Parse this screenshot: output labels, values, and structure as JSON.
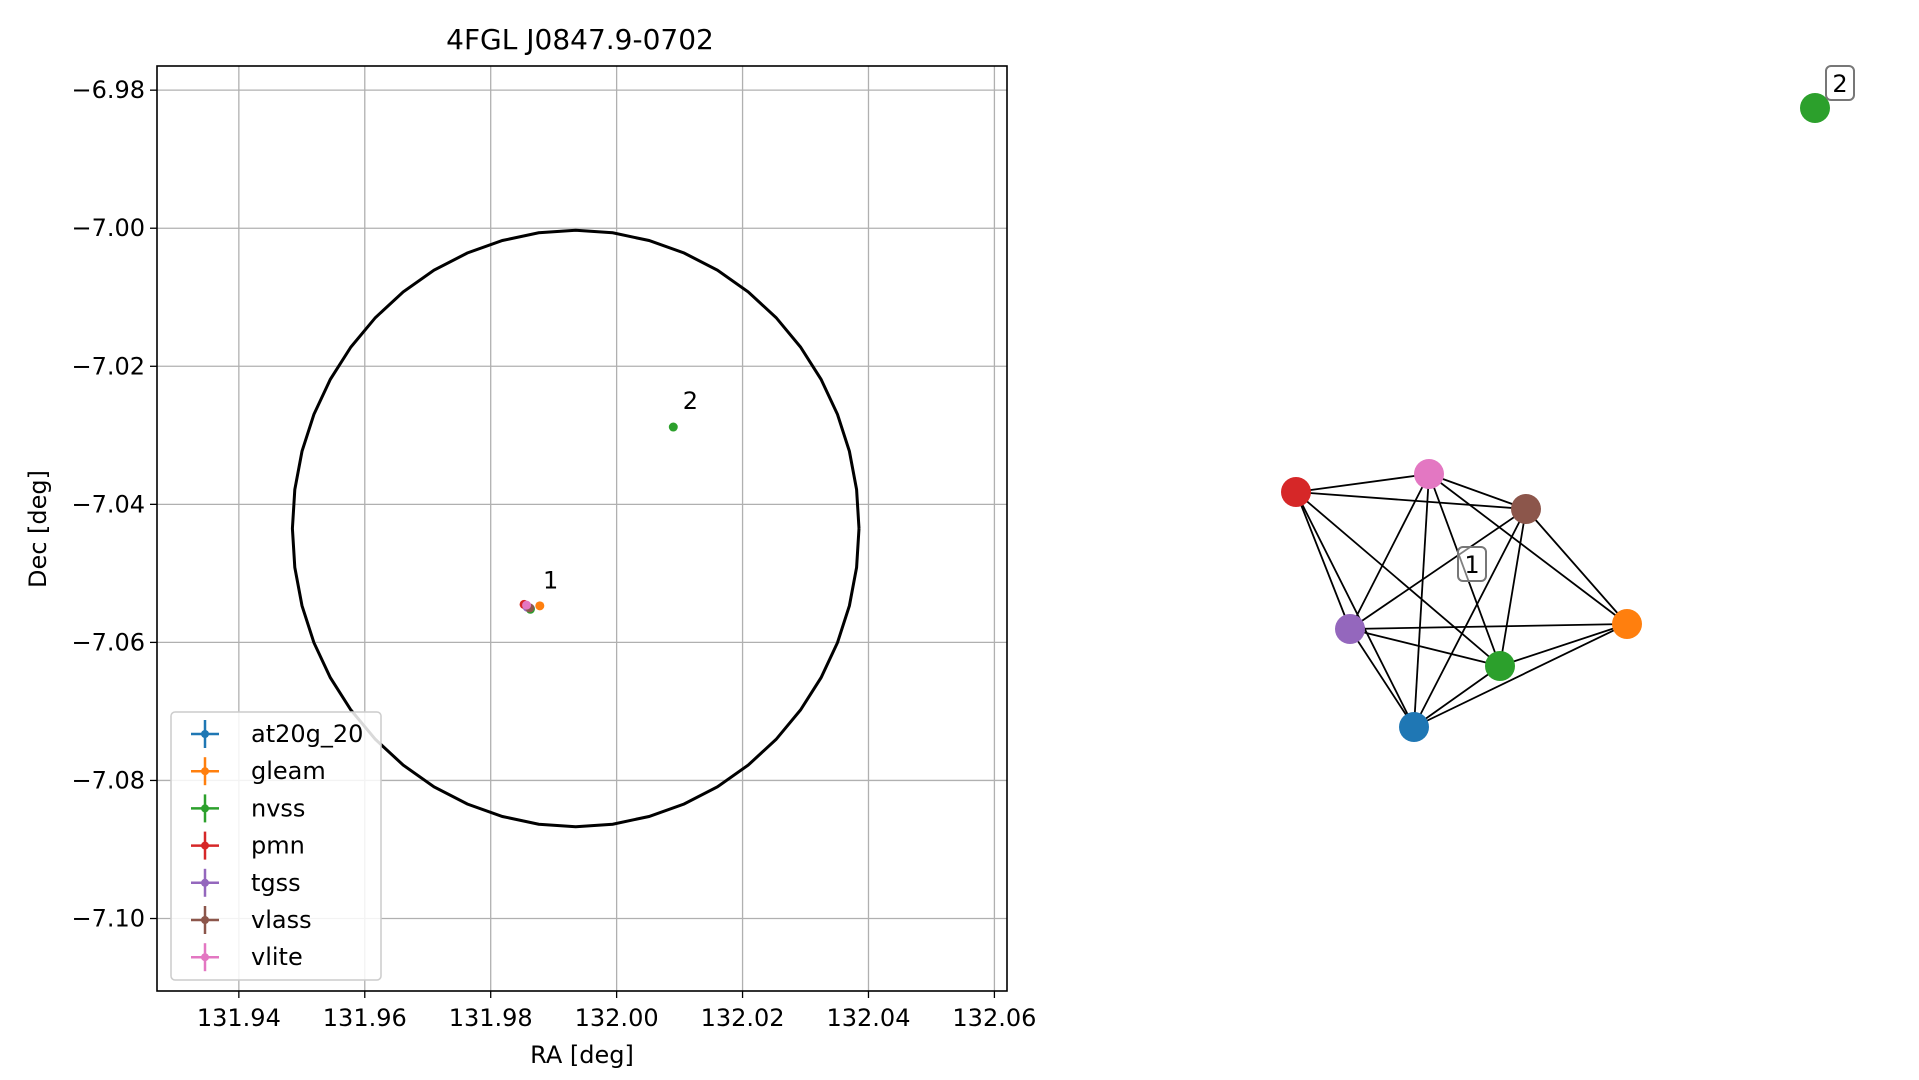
{
  "chart_data": [
    {
      "type": "scatter",
      "title": "4FGL J0847.9-0702",
      "xlabel": "RA [deg]",
      "ylabel": "Dec [deg]",
      "xlim": [
        131.927,
        132.062
      ],
      "ylim": [
        -7.1105,
        -6.9765
      ],
      "grid": true,
      "xticks": [
        131.94,
        131.96,
        131.98,
        132.0,
        132.02,
        132.04,
        132.06
      ],
      "xtick_labels": [
        "131.94",
        "131.96",
        "131.98",
        "132.00",
        "132.02",
        "132.04",
        "132.06"
      ],
      "yticks": [
        -6.98,
        -7.0,
        -7.02,
        -7.04,
        -7.06,
        -7.08,
        -7.1
      ],
      "ytick_labels": [
        "−6.98",
        "−7.00",
        "−7.02",
        "−7.04",
        "−7.06",
        "−7.08",
        "−7.10"
      ],
      "legend_position": "lower-left",
      "circle": {
        "center_ra": 131.9935,
        "center_dec": -7.0435,
        "radius_ra": 0.045,
        "radius_dec": 0.0432,
        "color": "#000000"
      },
      "series": [
        {
          "name": "at20g_20",
          "color": "#1f77b4",
          "points": [
            [
              131.9863,
              -7.0551
            ]
          ]
        },
        {
          "name": "gleam",
          "color": "#ff7f0e",
          "points": [
            [
              131.9878,
              -7.0547
            ]
          ]
        },
        {
          "name": "nvss",
          "color": "#2ca02c",
          "points": [
            [
              131.9863,
              -7.0552
            ],
            [
              132.009,
              -7.0288
            ]
          ]
        },
        {
          "name": "pmn",
          "color": "#d62728",
          "points": [
            [
              131.9853,
              -7.0545
            ]
          ]
        },
        {
          "name": "tgss",
          "color": "#9467bd",
          "points": [
            [
              131.9858,
              -7.0549
            ]
          ]
        },
        {
          "name": "vlass",
          "color": "#8c564b",
          "points": [
            [
              131.9862,
              -7.055
            ]
          ]
        },
        {
          "name": "vlite",
          "color": "#e377c2",
          "points": [
            [
              131.9857,
              -7.0546
            ]
          ]
        }
      ],
      "annotations": [
        {
          "text": "1",
          "ra": 131.9883,
          "dec": -7.0522
        },
        {
          "text": "2",
          "ra": 132.0105,
          "dec": -7.0262
        }
      ]
    },
    {
      "type": "network",
      "nodes": [
        {
          "id": "pmn",
          "color": "#d62728"
        },
        {
          "id": "vlite",
          "color": "#e377c2"
        },
        {
          "id": "vlass",
          "color": "#8c564b"
        },
        {
          "id": "tgss",
          "color": "#9467bd"
        },
        {
          "id": "nvss",
          "color": "#2ca02c"
        },
        {
          "id": "gleam",
          "color": "#ff7f0e"
        },
        {
          "id": "at20g_20",
          "color": "#1f77b4"
        },
        {
          "id": "nvss_2",
          "color": "#2ca02c"
        }
      ],
      "edges": [
        [
          "pmn",
          "vlite"
        ],
        [
          "pmn",
          "vlass"
        ],
        [
          "pmn",
          "tgss"
        ],
        [
          "pmn",
          "nvss"
        ],
        [
          "pmn",
          "at20g_20"
        ],
        [
          "vlite",
          "vlass"
        ],
        [
          "vlite",
          "tgss"
        ],
        [
          "vlite",
          "nvss"
        ],
        [
          "vlite",
          "gleam"
        ],
        [
          "vlite",
          "at20g_20"
        ],
        [
          "vlass",
          "tgss"
        ],
        [
          "vlass",
          "nvss"
        ],
        [
          "vlass",
          "gleam"
        ],
        [
          "vlass",
          "at20g_20"
        ],
        [
          "tgss",
          "nvss"
        ],
        [
          "tgss",
          "gleam"
        ],
        [
          "tgss",
          "at20g_20"
        ],
        [
          "nvss",
          "gleam"
        ],
        [
          "nvss",
          "at20g_20"
        ],
        [
          "gleam",
          "at20g_20"
        ]
      ],
      "group_labels": [
        "1",
        "2"
      ]
    }
  ]
}
